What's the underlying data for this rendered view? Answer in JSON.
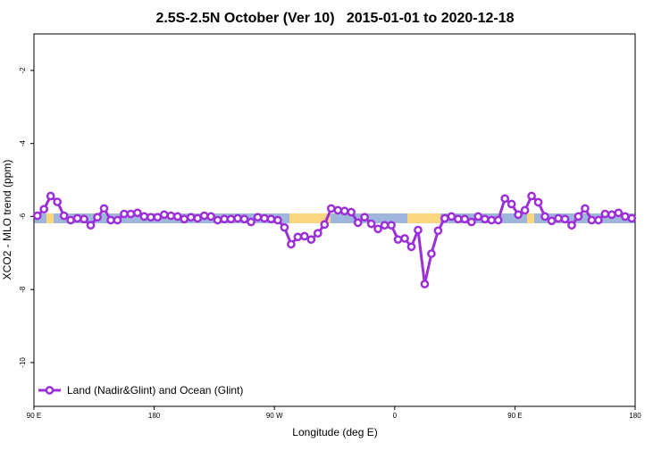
{
  "chart_data": {
    "type": "line",
    "title": "2.5S-2.5N October (Ver 10)   2015-01-01 to 2020-12-18",
    "xlabel": "Longitude (deg E)",
    "ylabel": "XCO2 - MLO trend (ppm)",
    "xlim": [
      90,
      540
    ],
    "xticks": [
      {
        "value": 90,
        "label": "90 E"
      },
      180,
      {
        "value": 270,
        "label": "90 W"
      },
      {
        "value": 360,
        "label": "0"
      },
      {
        "value": 450,
        "label": "90 E"
      },
      {
        "value": 540,
        "label": "180"
      }
    ],
    "ylim": [
      -11.2,
      -1
    ],
    "yticks": [
      -10,
      -8,
      -6,
      -4,
      -2
    ],
    "legend": "bottom-left",
    "x": [
      92.5,
      97.5,
      102.5,
      107.5,
      112.5,
      117.5,
      122.5,
      127.5,
      132.5,
      137.5,
      142.5,
      147.5,
      152.5,
      157.5,
      162.5,
      167.5,
      172.5,
      177.5,
      182.5,
      187.5,
      192.5,
      197.5,
      202.5,
      207.5,
      212.5,
      217.5,
      222.5,
      227.5,
      232.5,
      237.5,
      242.5,
      247.5,
      252.5,
      257.5,
      262.5,
      267.5,
      272.5,
      277.5,
      282.5,
      287.5,
      292.5,
      297.5,
      302.5,
      307.5,
      312.5,
      317.5,
      322.5,
      327.5,
      332.5,
      337.5,
      342.5,
      347.5,
      352.5,
      357.5,
      362.5,
      367.5,
      372.5,
      377.5,
      382.5,
      387.5,
      392.5,
      397.5,
      402.5,
      407.5,
      412.5,
      417.5,
      422.5,
      427.5,
      432.5,
      437.5,
      442.5,
      447.5,
      452.5,
      457.5,
      462.5,
      467.5,
      472.5,
      477.5,
      482.5,
      487.5,
      492.5,
      497.5,
      502.5,
      507.5,
      512.5,
      517.5,
      522.5,
      527.5,
      532.5,
      537.5
    ],
    "series": [
      {
        "name": "Land (Nadir&Glint) and Ocean (Glint)",
        "color": "#9b30d9",
        "values": [
          -5.98,
          -5.8,
          -5.44,
          -5.6,
          -5.98,
          -6.1,
          -6.05,
          -6.07,
          -6.24,
          -6.02,
          -5.78,
          -6.1,
          -6.1,
          -5.93,
          -5.93,
          -5.9,
          -6.0,
          -6.02,
          -6.02,
          -5.95,
          -5.98,
          -6.0,
          -6.07,
          -6.02,
          -6.05,
          -5.98,
          -6.0,
          -6.1,
          -6.07,
          -6.07,
          -6.05,
          -6.07,
          -6.15,
          -6.02,
          -6.05,
          -6.07,
          -6.1,
          -6.3,
          -6.76,
          -6.56,
          -6.54,
          -6.63,
          -6.46,
          -6.22,
          -5.78,
          -5.83,
          -5.85,
          -5.88,
          -6.17,
          -6.02,
          -6.2,
          -6.34,
          -6.24,
          -6.24,
          -6.63,
          -6.6,
          -6.83,
          -6.37,
          -7.85,
          -7.02,
          -6.39,
          -6.05,
          -6.0,
          -6.07,
          -6.07,
          -6.15,
          -6.0,
          -6.07,
          -6.1,
          -6.1,
          -5.51,
          -5.66,
          -5.95,
          -5.83,
          -5.44,
          -5.61,
          -6.0,
          -6.12,
          -6.05,
          -6.07,
          -6.24,
          -6.0,
          -5.78,
          -6.1,
          -6.1,
          -5.93,
          -5.95,
          -5.9,
          -6.0,
          -6.05
        ]
      }
    ]
  }
}
